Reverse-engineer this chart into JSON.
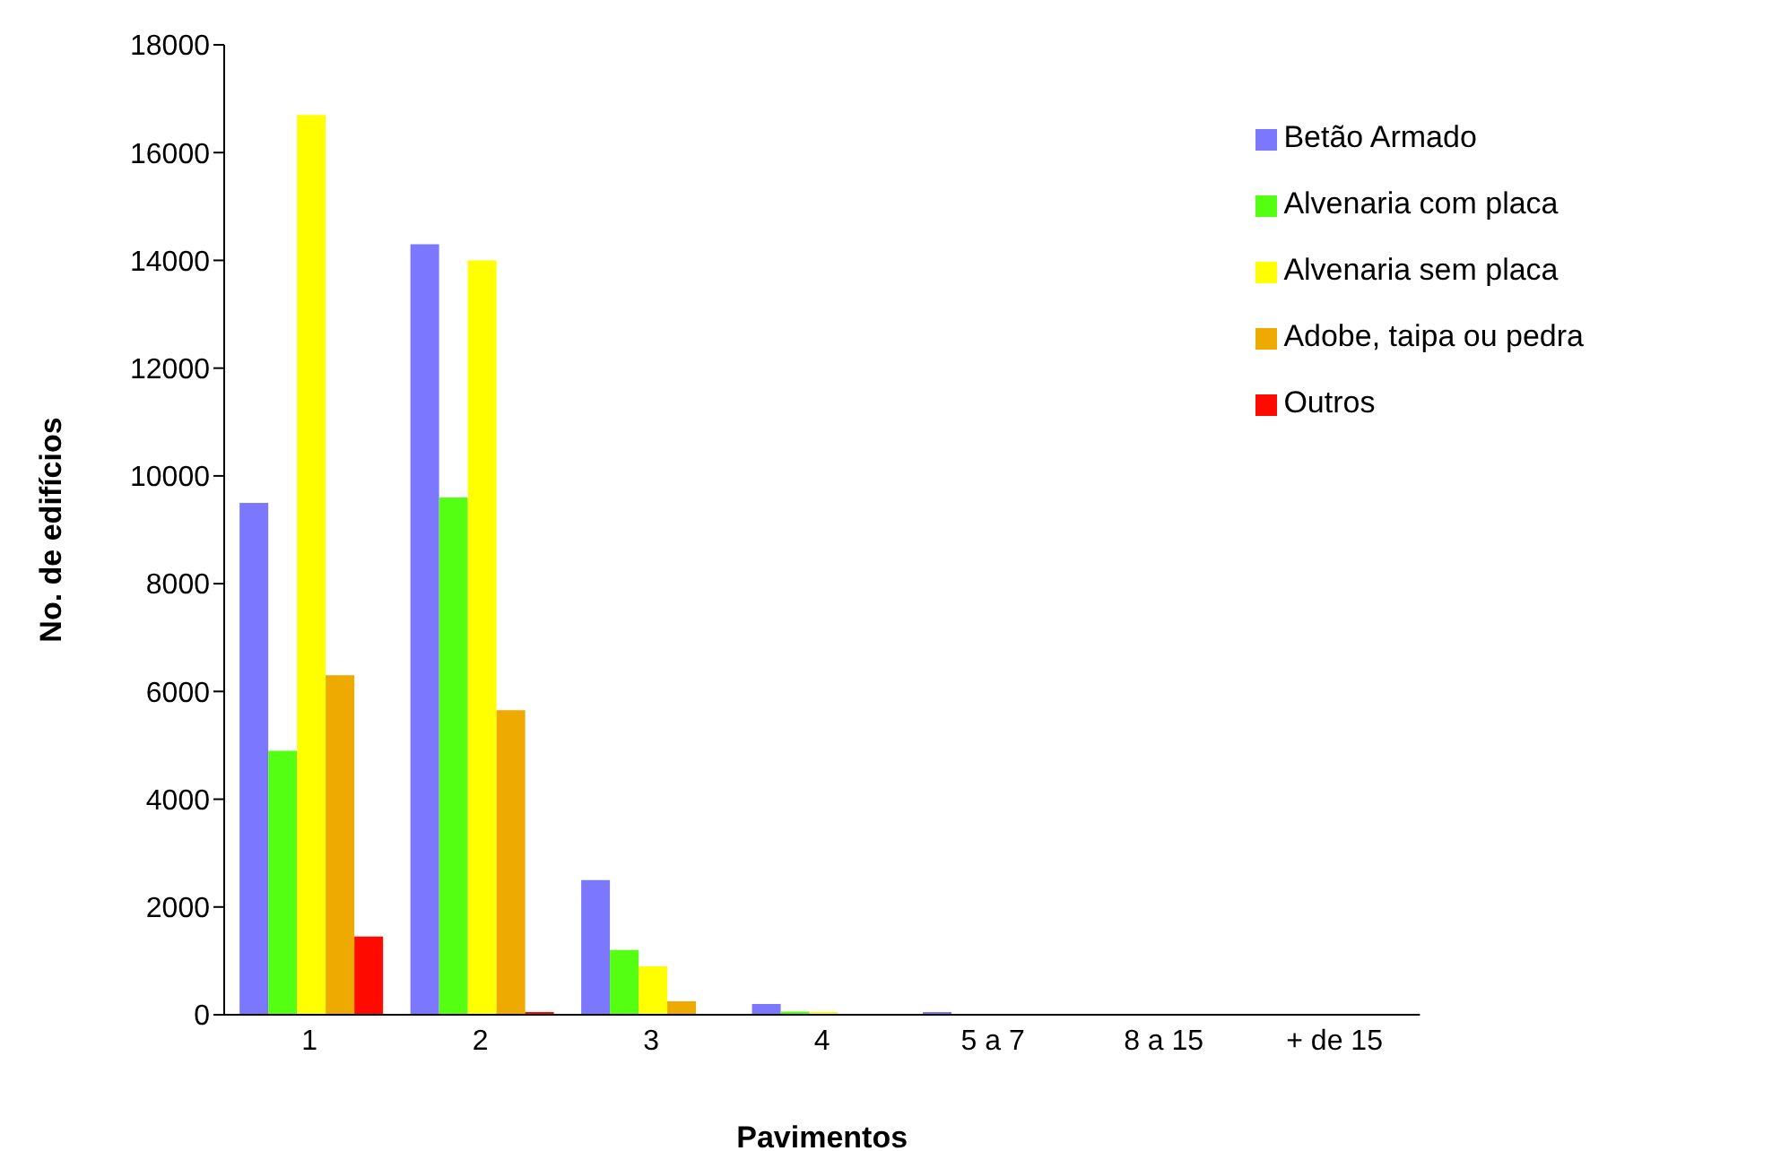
{
  "chart_data": {
    "type": "bar",
    "xlabel": "Pavimentos",
    "ylabel": "No. de edifícios",
    "categories": [
      "1",
      "2",
      "3",
      "4",
      "5 a 7",
      "8 a 15",
      "+ de 15"
    ],
    "series": [
      {
        "name": "Betão Armado",
        "color": "#7b78ff",
        "values": [
          9500,
          14300,
          2500,
          200,
          50,
          0,
          0
        ]
      },
      {
        "name": "Alvenaria com placa",
        "color": "#55ff11",
        "values": [
          4900,
          9600,
          1200,
          60,
          0,
          0,
          0
        ]
      },
      {
        "name": "Alvenaria sem placa",
        "color": "#ffff00",
        "values": [
          16700,
          14000,
          900,
          50,
          0,
          0,
          0
        ]
      },
      {
        "name": "Adobe, taipa ou pedra",
        "color": "#eeaa00",
        "values": [
          6300,
          5650,
          250,
          0,
          0,
          0,
          0
        ]
      },
      {
        "name": "Outros",
        "color": "#ff0a00",
        "values": [
          1450,
          50,
          0,
          0,
          0,
          0,
          0
        ]
      }
    ],
    "ylim": [
      0,
      18000
    ],
    "yticks": [
      0,
      2000,
      4000,
      6000,
      8000,
      10000,
      12000,
      14000,
      16000,
      18000
    ],
    "grid": false,
    "legend": "top right"
  }
}
